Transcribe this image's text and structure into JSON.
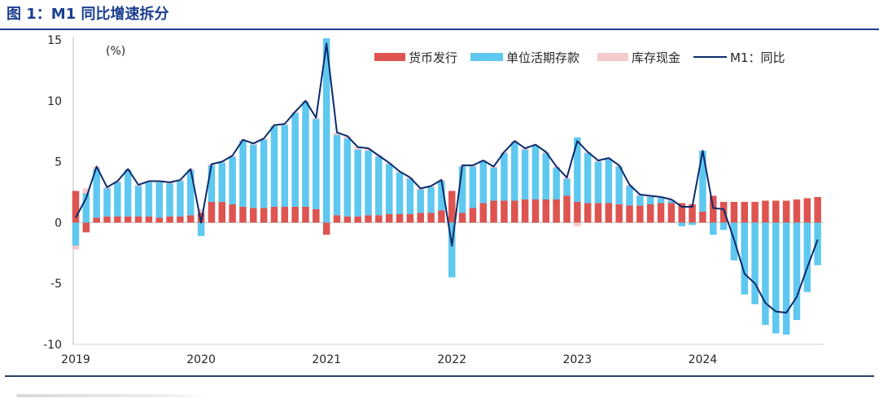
{
  "chart_data": {
    "type": "bar",
    "stacked": true,
    "title": "图 1：M1 同比增速拆分",
    "xlabel": "",
    "ylabel": "(%)",
    "ylim": [
      -10,
      15
    ],
    "yticks": [
      15,
      10,
      5,
      0,
      -5,
      -10
    ],
    "xticks": [
      "2019",
      "2020",
      "2021",
      "2022",
      "2023",
      "2024"
    ],
    "grid": false,
    "legend_position": "top-right",
    "x": [
      "2019-01",
      "2019-02",
      "2019-03",
      "2019-04",
      "2019-05",
      "2019-06",
      "2019-07",
      "2019-08",
      "2019-09",
      "2019-10",
      "2019-11",
      "2019-12",
      "2020-01",
      "2020-02",
      "2020-03",
      "2020-04",
      "2020-05",
      "2020-06",
      "2020-07",
      "2020-08",
      "2020-09",
      "2020-10",
      "2020-11",
      "2020-12",
      "2021-01",
      "2021-02",
      "2021-03",
      "2021-04",
      "2021-05",
      "2021-06",
      "2021-07",
      "2021-08",
      "2021-09",
      "2021-10",
      "2021-11",
      "2021-12",
      "2022-01",
      "2022-02",
      "2022-03",
      "2022-04",
      "2022-05",
      "2022-06",
      "2022-07",
      "2022-08",
      "2022-09",
      "2022-10",
      "2022-11",
      "2022-12",
      "2023-01",
      "2023-02",
      "2023-03",
      "2023-04",
      "2023-05",
      "2023-06",
      "2023-07",
      "2023-08",
      "2023-09",
      "2023-10",
      "2023-11",
      "2023-12",
      "2024-01",
      "2024-02",
      "2024-03",
      "2024-04",
      "2024-05",
      "2024-06",
      "2024-07",
      "2024-08",
      "2024-09",
      "2024-10",
      "2024-11",
      "2024-12"
    ],
    "series": [
      {
        "name": "货币发行",
        "type": "bar",
        "color": "#dd5450",
        "values": [
          2.6,
          -0.8,
          0.4,
          0.5,
          0.5,
          0.5,
          0.5,
          0.5,
          0.4,
          0.5,
          0.5,
          0.6,
          0.8,
          1.7,
          1.7,
          1.5,
          1.3,
          1.2,
          1.2,
          1.3,
          1.3,
          1.3,
          1.3,
          1.1,
          -1.0,
          0.6,
          0.5,
          0.5,
          0.6,
          0.6,
          0.7,
          0.7,
          0.7,
          0.8,
          0.8,
          1.0,
          2.6,
          0.8,
          1.2,
          1.6,
          1.8,
          1.8,
          1.8,
          1.9,
          1.9,
          1.9,
          1.9,
          2.2,
          1.7,
          1.6,
          1.6,
          1.6,
          1.5,
          1.4,
          1.4,
          1.5,
          1.6,
          1.6,
          1.6,
          1.5,
          0.9,
          2.2,
          1.7,
          1.7,
          1.7,
          1.7,
          1.8,
          1.8,
          1.8,
          1.9,
          2.0,
          2.1
        ]
      },
      {
        "name": "单位活期存款",
        "type": "bar",
        "color": "#5ec8f0",
        "values": [
          -1.9,
          2.4,
          4.0,
          2.3,
          2.8,
          3.8,
          2.5,
          2.8,
          2.9,
          2.7,
          2.9,
          3.7,
          -1.1,
          3.0,
          3.2,
          3.9,
          5.4,
          5.2,
          5.6,
          6.6,
          6.7,
          7.7,
          8.6,
          7.4,
          15.4,
          6.6,
          6.4,
          5.5,
          5.3,
          4.8,
          4.1,
          3.4,
          2.9,
          1.9,
          2.1,
          2.4,
          -4.5,
          3.8,
          3.4,
          3.4,
          2.7,
          3.9,
          4.8,
          4.1,
          4.4,
          3.8,
          2.6,
          1.4,
          5.3,
          4.1,
          3.4,
          3.6,
          3.1,
          1.6,
          0.8,
          0.6,
          0.4,
          0.2,
          -0.3,
          -0.2,
          5.0,
          -1.0,
          -0.6,
          -3.1,
          -5.9,
          -6.7,
          -8.4,
          -9.1,
          -9.2,
          -8.0,
          -5.7,
          -3.5
        ]
      },
      {
        "name": "库存现金",
        "type": "bar",
        "color": "#f6c9cb",
        "values": [
          -0.3,
          0.4,
          0.2,
          0.1,
          0.1,
          0.1,
          0.1,
          0.1,
          0.1,
          0.1,
          0.1,
          0.1,
          0.3,
          0.1,
          0.1,
          0.1,
          0.1,
          0.1,
          0.1,
          0.1,
          0.1,
          0.1,
          0.1,
          0.1,
          0.3,
          0.2,
          0.2,
          0.2,
          0.2,
          0.1,
          0.1,
          0.1,
          0.1,
          0.1,
          0.1,
          0.1,
          0.0,
          0.1,
          0.1,
          0.1,
          0.1,
          0.1,
          0.1,
          0.1,
          0.1,
          0.1,
          0.1,
          0.1,
          -0.3,
          0.1,
          0.1,
          0.1,
          0.1,
          0.1,
          0.1,
          0.1,
          0.1,
          0.1,
          0.0,
          0.0,
          0.0,
          0.0,
          0.0,
          0.0,
          0.0,
          0.0,
          0.0,
          0.0,
          0.0,
          0.0,
          0.0,
          0.0
        ]
      },
      {
        "name": "M1：同比",
        "type": "line",
        "color": "#0b2a6c",
        "values": [
          0.4,
          2.0,
          4.6,
          2.9,
          3.4,
          4.4,
          3.1,
          3.4,
          3.4,
          3.3,
          3.5,
          4.4,
          0.0,
          4.8,
          5.0,
          5.5,
          6.8,
          6.5,
          6.9,
          8.0,
          8.1,
          9.1,
          10.0,
          8.6,
          14.7,
          7.4,
          7.1,
          6.2,
          6.1,
          5.5,
          4.9,
          4.2,
          3.7,
          2.8,
          3.0,
          3.5,
          -1.9,
          4.7,
          4.7,
          5.1,
          4.6,
          5.8,
          6.7,
          6.1,
          6.4,
          5.8,
          4.6,
          3.7,
          6.7,
          5.8,
          5.1,
          5.3,
          4.7,
          3.1,
          2.3,
          2.2,
          2.1,
          1.9,
          1.3,
          1.3,
          5.9,
          1.2,
          1.1,
          -1.4,
          -4.2,
          -5.0,
          -6.6,
          -7.3,
          -7.4,
          -6.1,
          -3.7,
          -1.4
        ]
      }
    ]
  },
  "colors": {
    "title": "#1b3f8f",
    "rule": "#1b3f8f",
    "axis": "#bfbfbf"
  }
}
